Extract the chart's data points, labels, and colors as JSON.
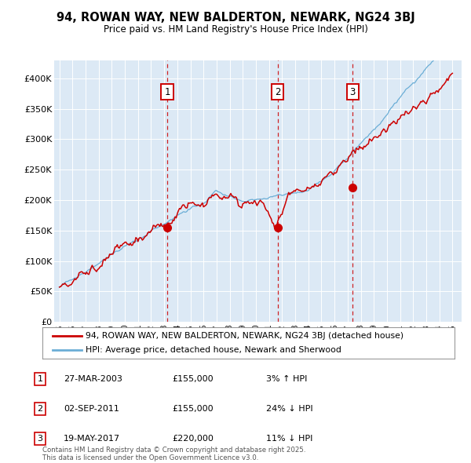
{
  "title": "94, ROWAN WAY, NEW BALDERTON, NEWARK, NG24 3BJ",
  "subtitle": "Price paid vs. HM Land Registry's House Price Index (HPI)",
  "plot_bg_color": "#dce9f5",
  "ylim": [
    0,
    420000
  ],
  "yticks": [
    0,
    50000,
    100000,
    150000,
    200000,
    250000,
    300000,
    350000,
    400000
  ],
  "ytick_labels": [
    "£0",
    "£50K",
    "£100K",
    "£150K",
    "£200K",
    "£250K",
    "£300K",
    "£350K",
    "£400K"
  ],
  "hpi_color": "#6baed6",
  "price_color": "#cc0000",
  "vline_color": "#cc0000",
  "sale_dates": [
    2003.23,
    2011.67,
    2017.38
  ],
  "sale_prices": [
    155000,
    155000,
    220000
  ],
  "sale_labels": [
    "1",
    "2",
    "3"
  ],
  "sale_table": [
    {
      "label": "1",
      "date": "27-MAR-2003",
      "price": "£155,000",
      "hpi": "3% ↑ HPI"
    },
    {
      "label": "2",
      "date": "02-SEP-2011",
      "price": "£155,000",
      "hpi": "24% ↓ HPI"
    },
    {
      "label": "3",
      "date": "19-MAY-2017",
      "price": "£220,000",
      "hpi": "11% ↓ HPI"
    }
  ],
  "legend_line1": "94, ROWAN WAY, NEW BALDERTON, NEWARK, NG24 3BJ (detached house)",
  "legend_line2": "HPI: Average price, detached house, Newark and Sherwood",
  "footer": "Contains HM Land Registry data © Crown copyright and database right 2025.\nThis data is licensed under the Open Government Licence v3.0."
}
